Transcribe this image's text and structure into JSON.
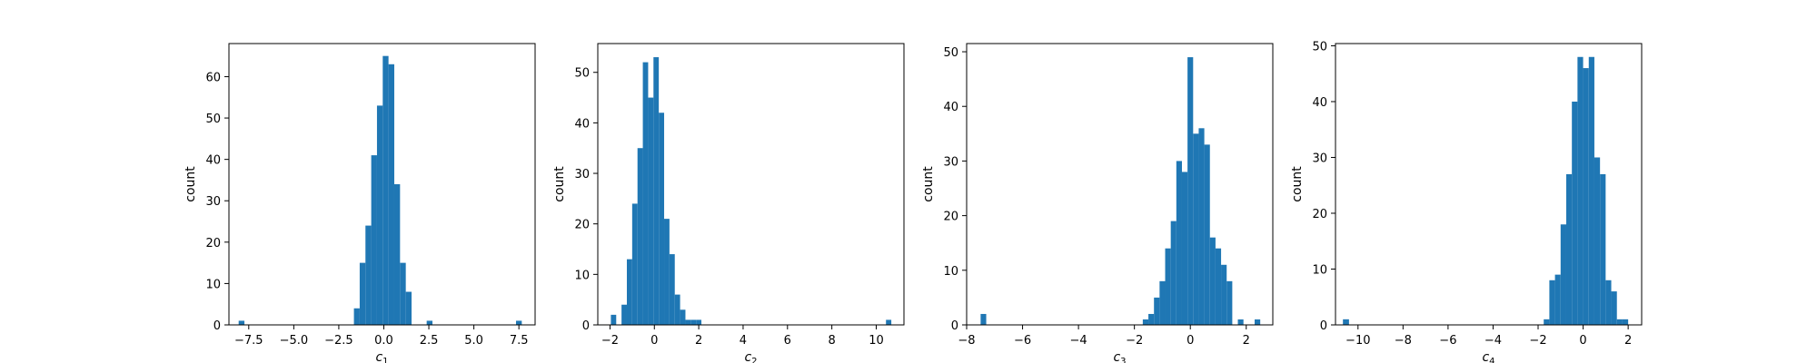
{
  "chart_data": [
    {
      "type": "bar",
      "xlabel": "c",
      "xlabel_sub": "1",
      "ylabel": "count",
      "xlim": [
        -8.6,
        8.4
      ],
      "ylim": [
        0,
        68
      ],
      "xticks": [
        -7.5,
        -5.0,
        -2.5,
        0.0,
        2.5,
        5.0,
        7.5
      ],
      "xtick_labels": [
        "−7.5",
        "−5.0",
        "−2.5",
        "0.0",
        "2.5",
        "5.0",
        "7.5"
      ],
      "yticks": [
        0,
        10,
        20,
        30,
        40,
        50,
        60
      ],
      "ytick_labels": [
        "0",
        "10",
        "20",
        "30",
        "40",
        "50",
        "60"
      ],
      "grid": false,
      "bin_edges": [
        -8.06,
        -7.74,
        -1.66,
        -1.34,
        -1.02,
        -0.7,
        -0.38,
        -0.06,
        0.26,
        0.58,
        0.9,
        1.22,
        1.54,
        2.38,
        2.7,
        7.34,
        7.66
      ],
      "counts": [
        1,
        0,
        4,
        15,
        24,
        41,
        53,
        65,
        63,
        34,
        15,
        8,
        0,
        1,
        0,
        1
      ],
      "bar_color": "#1f77b4"
    },
    {
      "type": "bar",
      "xlabel": "c",
      "xlabel_sub": "2",
      "ylabel": "count",
      "xlim": [
        -2.55,
        11.25
      ],
      "ylim": [
        0,
        55.7
      ],
      "xticks": [
        -2,
        0,
        2,
        4,
        6,
        8,
        10
      ],
      "xtick_labels": [
        "−2",
        "0",
        "2",
        "4",
        "6",
        "8",
        "10"
      ],
      "yticks": [
        0,
        10,
        20,
        30,
        40,
        50
      ],
      "ytick_labels": [
        "0",
        "10",
        "20",
        "30",
        "40",
        "50"
      ],
      "grid": false,
      "bin_edges": [
        -1.96,
        -1.72,
        -1.48,
        -1.24,
        -1.0,
        -0.76,
        -0.52,
        -0.28,
        -0.04,
        0.2,
        0.44,
        0.68,
        0.92,
        1.16,
        1.4,
        1.64,
        1.88,
        2.12,
        2.36,
        10.44,
        10.68
      ],
      "counts": [
        2,
        0,
        4,
        13,
        24,
        35,
        52,
        45,
        53,
        42,
        21,
        14,
        6,
        3,
        1,
        1,
        1,
        0,
        0,
        1
      ],
      "bar_color": "#1f77b4"
    },
    {
      "type": "bar",
      "xlabel": "c",
      "xlabel_sub": "3",
      "ylabel": "count",
      "xlim": [
        -8.0,
        2.95
      ],
      "ylim": [
        0,
        51.5
      ],
      "xticks": [
        -8,
        -6,
        -4,
        -2,
        0,
        2
      ],
      "xtick_labels": [
        "−8",
        "−6",
        "−4",
        "−2",
        "0",
        "2"
      ],
      "yticks": [
        0,
        10,
        20,
        30,
        40,
        50
      ],
      "ytick_labels": [
        "0",
        "10",
        "20",
        "30",
        "40",
        "50"
      ],
      "grid": false,
      "bin_edges": [
        -7.5,
        -7.3,
        -1.7,
        -1.5,
        -1.3,
        -1.1,
        -0.9,
        -0.7,
        -0.5,
        -0.3,
        -0.1,
        0.1,
        0.3,
        0.5,
        0.7,
        0.9,
        1.1,
        1.3,
        1.5,
        1.7,
        1.9,
        2.1,
        2.3,
        2.5
      ],
      "counts": [
        2,
        0,
        1,
        2,
        5,
        8,
        14,
        19,
        30,
        28,
        49,
        35,
        36,
        33,
        16,
        14,
        11,
        8,
        0,
        1,
        0,
        0,
        1
      ],
      "bar_color": "#1f77b4"
    },
    {
      "type": "bar",
      "xlabel": "c",
      "xlabel_sub": "4",
      "ylabel": "count",
      "xlim": [
        -11.0,
        2.6
      ],
      "ylim": [
        0,
        50.4
      ],
      "xticks": [
        -10,
        -8,
        -6,
        -4,
        -2,
        0,
        2
      ],
      "xtick_labels": [
        "−10",
        "−8",
        "−6",
        "−4",
        "−2",
        "0",
        "2"
      ],
      "yticks": [
        0,
        10,
        20,
        30,
        40,
        50
      ],
      "ytick_labels": [
        "0",
        "10",
        "20",
        "30",
        "40",
        "50"
      ],
      "grid": false,
      "bin_edges": [
        -10.67,
        -10.4,
        -1.75,
        -1.5,
        -1.25,
        -1.0,
        -0.75,
        -0.5,
        -0.25,
        0.0,
        0.25,
        0.5,
        0.75,
        1.0,
        1.25,
        1.5,
        1.75,
        2.0
      ],
      "counts": [
        1,
        0,
        1,
        8,
        9,
        18,
        27,
        40,
        48,
        46,
        48,
        30,
        27,
        8,
        6,
        1,
        1
      ],
      "bar_color": "#1f77b4"
    }
  ]
}
